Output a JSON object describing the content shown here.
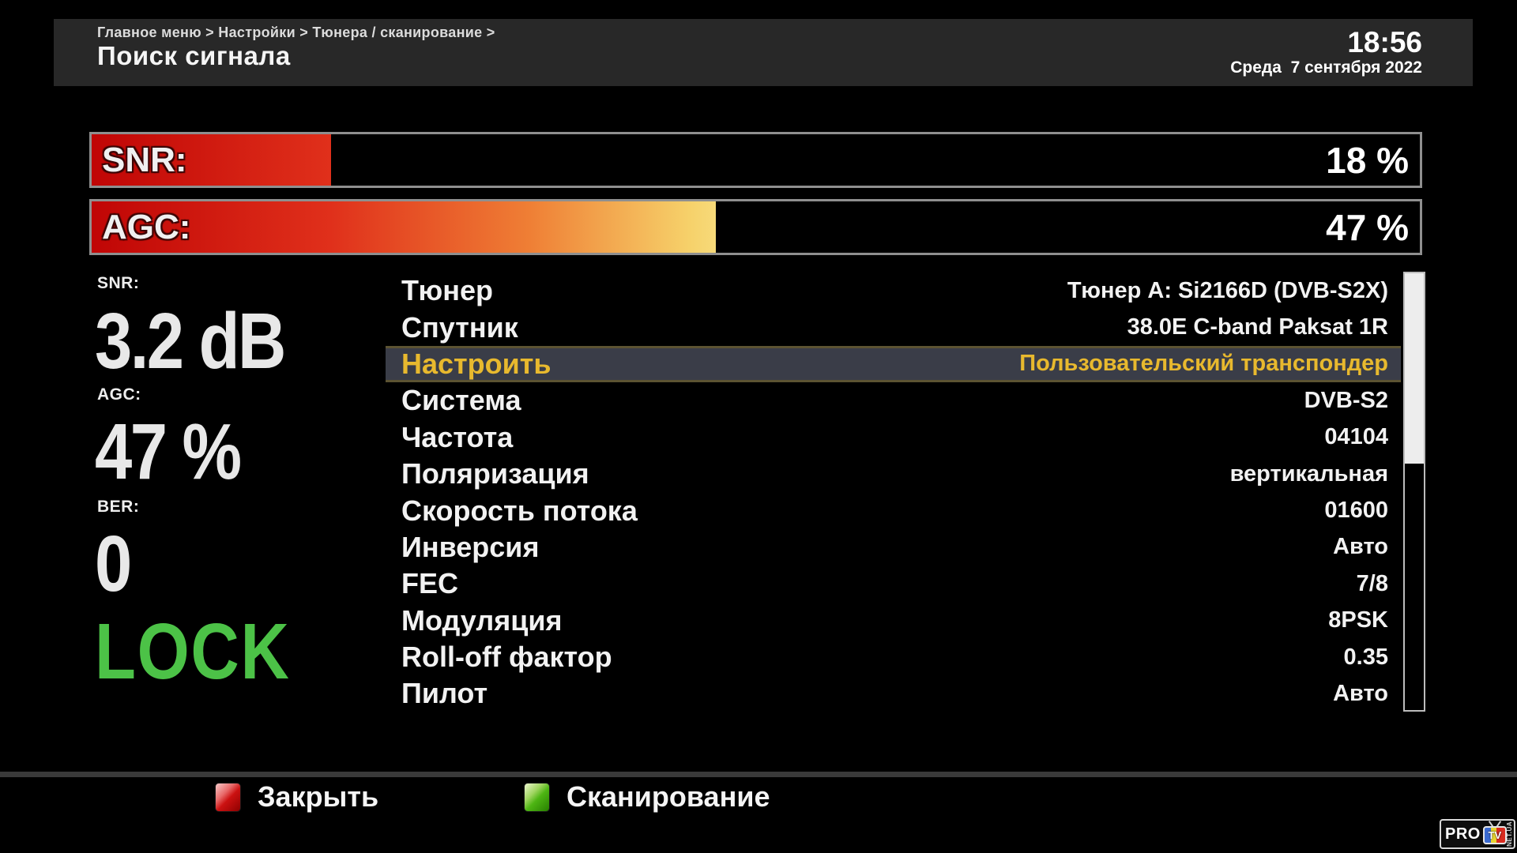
{
  "header": {
    "breadcrumb": "Главное меню > Настройки > Тюнера / сканирование >",
    "title": "Поиск сигнала",
    "time": "18:56",
    "date": "Среда  7 сентября 2022"
  },
  "signal_bars": {
    "snr": {
      "label": "SNR:",
      "value_text": "18 %",
      "percent": 18
    },
    "agc": {
      "label": "AGC:",
      "value_text": "47 %",
      "percent": 47
    }
  },
  "stats": {
    "snr": {
      "label": "SNR:",
      "value": "3.2 dB"
    },
    "agc": {
      "label": "AGC:",
      "value": "47 %"
    },
    "ber": {
      "label": "BER:",
      "value": "0"
    }
  },
  "lock_status": "LOCK",
  "lock_color": "#4cc247",
  "menu": {
    "selected_index": 2,
    "highlight_text_color": "#e8b92e",
    "items": [
      {
        "label": "Тюнер",
        "value": "Тюнер A: Si2166D (DVB-S2X)"
      },
      {
        "label": "Спутник",
        "value": "38.0E C-band Paksat 1R"
      },
      {
        "label": "Настроить",
        "value": "Пользовательский транспондер"
      },
      {
        "label": "Система",
        "value": "DVB-S2"
      },
      {
        "label": "Частота",
        "value": "04104"
      },
      {
        "label": "Поляризация",
        "value": "вертикальная"
      },
      {
        "label": "Скорость потока",
        "value": "01600"
      },
      {
        "label": "Инверсия",
        "value": "Авто"
      },
      {
        "label": "FEC",
        "value": "7/8"
      },
      {
        "label": "Модуляция",
        "value": "8PSK"
      },
      {
        "label": "Roll-off фактор",
        "value": "0.35"
      },
      {
        "label": "Пилот",
        "value": "Авто"
      }
    ]
  },
  "footer": {
    "close": {
      "label": "Закрыть",
      "button_color": "#cc1111"
    },
    "scan": {
      "label": "Сканирование",
      "button_color": "#4db513"
    }
  },
  "logo": {
    "pro": "PRO",
    "tv": "TV",
    "suffix": "NET.UA"
  }
}
